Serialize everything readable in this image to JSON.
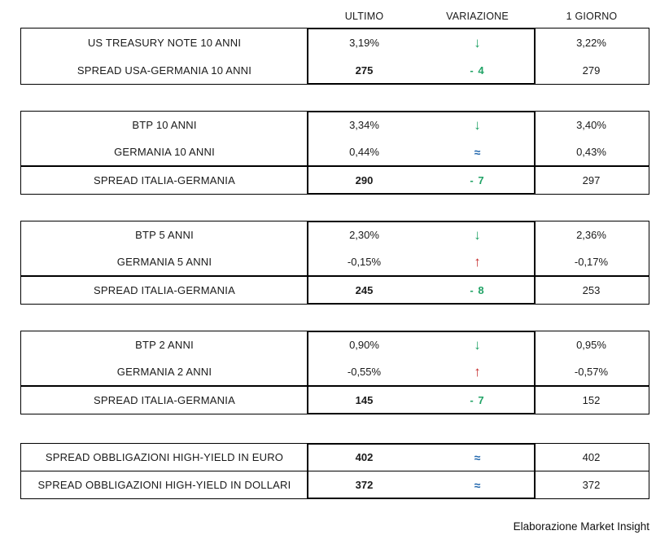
{
  "colors": {
    "green": "#21A366",
    "red": "#C52828",
    "blue": "#2368AE"
  },
  "chart_data": {
    "type": "table",
    "columns": [
      "ULTIMO",
      "VARIAZIONE",
      "1 GIORNO"
    ],
    "tables": [
      {
        "rows": [
          {
            "label": "US TREASURY NOTE 10 ANNI",
            "ultimo": "3,19%",
            "variazione": "↓",
            "direction": "down",
            "giorno": "3,22%"
          },
          {
            "label": "SPREAD USA-GERMANIA 10 ANNI",
            "ultimo": "275",
            "variazione": "- 4",
            "direction": "down",
            "giorno": "279"
          }
        ]
      },
      {
        "rows": [
          {
            "label": "BTP 10 ANNI",
            "ultimo": "3,34%",
            "variazione": "↓",
            "direction": "down",
            "giorno": "3,40%"
          },
          {
            "label": "GERMANIA 10 ANNI",
            "ultimo": "0,44%",
            "variazione": "≈",
            "direction": "flat",
            "giorno": "0,43%"
          },
          {
            "label": "SPREAD ITALIA-GERMANIA",
            "ultimo": "290",
            "variazione": "- 7",
            "direction": "down",
            "giorno": "297"
          }
        ]
      },
      {
        "rows": [
          {
            "label": "BTP 5 ANNI",
            "ultimo": "2,30%",
            "variazione": "↓",
            "direction": "down",
            "giorno": "2,36%"
          },
          {
            "label": "GERMANIA 5 ANNI",
            "ultimo": "-0,15%",
            "variazione": "↑",
            "direction": "up",
            "giorno": "-0,17%"
          },
          {
            "label": "SPREAD ITALIA-GERMANIA",
            "ultimo": "245",
            "variazione": "- 8",
            "direction": "down",
            "giorno": "253"
          }
        ]
      },
      {
        "rows": [
          {
            "label": "BTP 2 ANNI",
            "ultimo": "0,90%",
            "variazione": "↓",
            "direction": "down",
            "giorno": "0,95%"
          },
          {
            "label": "GERMANIA 2 ANNI",
            "ultimo": "-0,55%",
            "variazione": "↑",
            "direction": "up",
            "giorno": "-0,57%"
          },
          {
            "label": "SPREAD ITALIA-GERMANIA",
            "ultimo": "145",
            "variazione": "- 7",
            "direction": "down",
            "giorno": "152"
          }
        ]
      },
      {
        "rows": [
          {
            "label": "SPREAD OBBLIGAZIONI HIGH-YIELD IN EURO",
            "ultimo": "402",
            "variazione": "≈",
            "direction": "flat",
            "giorno": "402"
          },
          {
            "label": "SPREAD OBBLIGAZIONI HIGH-YIELD IN DOLLARI",
            "ultimo": "372",
            "variazione": "≈",
            "direction": "flat",
            "giorno": "372"
          }
        ]
      }
    ],
    "footer": "Elaborazione Market Insight"
  }
}
